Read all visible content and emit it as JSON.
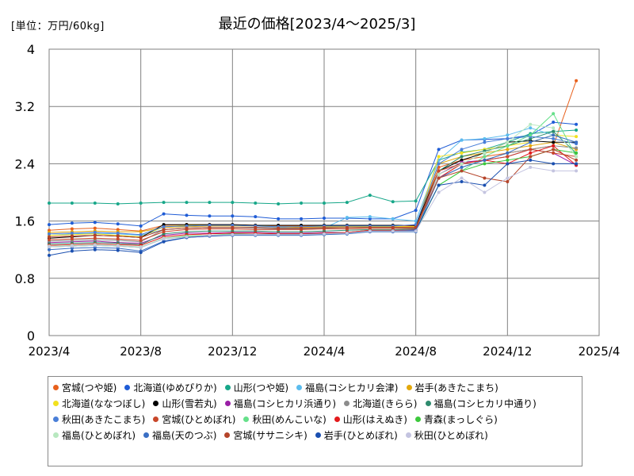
{
  "page": {
    "unit_label": "[単位：万円/60kg]",
    "title": "最近の価格[2023/4～2025/3]"
  },
  "chart_data": {
    "type": "line",
    "title": "最近の価格[2023/4～2025/3]",
    "ylabel": "[単位：万円/60kg]",
    "ylim": [
      0,
      4
    ],
    "yticks": [
      0,
      0.8,
      1.6,
      2.4,
      3.2,
      4
    ],
    "ytick_labels": [
      "0",
      "0.8",
      "1.6",
      "2.4",
      "3.2",
      "4"
    ],
    "xticks": [
      "2023/4",
      "2023/8",
      "2023/12",
      "2024/4",
      "2024/8",
      "2024/12",
      "2025/4"
    ],
    "x": [
      "2023/4",
      "2023/5",
      "2023/6",
      "2023/7",
      "2023/8",
      "2023/9",
      "2023/10",
      "2023/11",
      "2023/12",
      "2024/1",
      "2024/2",
      "2024/3",
      "2024/4",
      "2024/5",
      "2024/6",
      "2024/7",
      "2024/8",
      "2024/9",
      "2024/10",
      "2024/11",
      "2024/12",
      "2025/1",
      "2025/2",
      "2025/3"
    ],
    "grid": true,
    "legend_position": "bottom",
    "series": [
      {
        "name": "宮城(つや姫)",
        "color": "#e8601c",
        "values": [
          1.47,
          1.49,
          1.5,
          1.48,
          1.46,
          1.54,
          1.55,
          1.55,
          1.55,
          1.54,
          1.53,
          1.53,
          1.53,
          1.53,
          1.53,
          1.53,
          1.53,
          2.35,
          2.45,
          2.5,
          2.55,
          2.6,
          2.65,
          3.56
        ]
      },
      {
        "name": "北海道(ゆめぴりか)",
        "color": "#1f5cd6",
        "values": [
          1.55,
          1.57,
          1.58,
          1.56,
          1.53,
          1.7,
          1.68,
          1.67,
          1.67,
          1.66,
          1.63,
          1.63,
          1.64,
          1.64,
          1.63,
          1.63,
          1.75,
          2.6,
          2.73,
          2.74,
          2.75,
          2.8,
          2.98,
          2.95
        ]
      },
      {
        "name": "山形(つや姫)",
        "color": "#17a789",
        "values": [
          1.85,
          1.85,
          1.85,
          1.84,
          1.85,
          1.86,
          1.86,
          1.86,
          1.86,
          1.85,
          1.84,
          1.85,
          1.85,
          1.86,
          1.96,
          1.87,
          1.88,
          2.45,
          2.56,
          2.6,
          2.7,
          2.82,
          2.85,
          2.87
        ]
      },
      {
        "name": "福島(コシヒカリ会津)",
        "color": "#5bbcee",
        "values": [
          1.4,
          1.42,
          1.43,
          1.42,
          1.4,
          1.48,
          1.5,
          1.51,
          1.51,
          1.51,
          1.51,
          1.5,
          1.5,
          1.65,
          1.66,
          1.63,
          1.6,
          2.45,
          2.73,
          2.75,
          2.8,
          2.9,
          2.8,
          2.7
        ]
      },
      {
        "name": "岩手(あきたこまち)",
        "color": "#e3a80c",
        "values": [
          1.44,
          1.45,
          1.46,
          1.45,
          1.45,
          1.51,
          1.52,
          1.53,
          1.53,
          1.53,
          1.52,
          1.51,
          1.51,
          1.52,
          1.53,
          1.52,
          1.52,
          2.4,
          2.5,
          2.55,
          2.6,
          2.65,
          2.7,
          2.6
        ]
      },
      {
        "name": "北海道(ななつぼし)",
        "color": "#f2e11e",
        "values": [
          1.4,
          1.41,
          1.42,
          1.4,
          1.38,
          1.52,
          1.54,
          1.54,
          1.54,
          1.53,
          1.52,
          1.52,
          1.52,
          1.52,
          1.52,
          1.52,
          1.52,
          2.5,
          2.55,
          2.6,
          2.65,
          2.7,
          2.8,
          2.78
        ]
      },
      {
        "name": "山形(雪若丸)",
        "color": "#000000",
        "values": [
          1.36,
          1.38,
          1.4,
          1.39,
          1.37,
          1.55,
          1.55,
          1.55,
          1.55,
          1.54,
          1.54,
          1.54,
          1.54,
          1.54,
          1.54,
          1.54,
          1.54,
          2.3,
          2.45,
          2.55,
          2.7,
          2.72,
          2.7,
          2.7
        ]
      },
      {
        "name": "福島(コシヒカリ浜通り)",
        "color": "#9a1fa6",
        "values": [
          1.3,
          1.31,
          1.32,
          1.3,
          1.29,
          1.4,
          1.43,
          1.43,
          1.44,
          1.44,
          1.43,
          1.43,
          1.44,
          1.44,
          1.47,
          1.47,
          1.48,
          2.25,
          2.42,
          2.45,
          2.5,
          2.6,
          2.55,
          2.38
        ]
      },
      {
        "name": "北海道(きらら)",
        "color": "#8c8c8c",
        "values": [
          1.32,
          1.33,
          1.34,
          1.33,
          1.31,
          1.48,
          1.5,
          1.51,
          1.51,
          1.5,
          1.49,
          1.49,
          1.5,
          1.51,
          1.51,
          1.51,
          1.51,
          2.2,
          2.35,
          2.45,
          2.55,
          2.6,
          2.65,
          2.62
        ]
      },
      {
        "name": "福島(コシヒカリ中通り)",
        "color": "#2e8b6e",
        "values": [
          1.28,
          1.29,
          1.3,
          1.29,
          1.27,
          1.42,
          1.45,
          1.46,
          1.46,
          1.46,
          1.45,
          1.45,
          1.46,
          1.47,
          1.48,
          1.48,
          1.49,
          2.3,
          2.5,
          2.58,
          2.65,
          2.75,
          2.85,
          2.55
        ]
      },
      {
        "name": "秋田(あきたこまち)",
        "color": "#4a7fd8",
        "values": [
          1.42,
          1.43,
          1.44,
          1.43,
          1.41,
          1.52,
          1.53,
          1.54,
          1.54,
          1.53,
          1.52,
          1.52,
          1.53,
          1.53,
          1.53,
          1.53,
          1.55,
          2.4,
          2.6,
          2.7,
          2.75,
          2.78,
          2.75,
          2.68
        ]
      },
      {
        "name": "宮城(ひとめぼれ)",
        "color": "#c8472a",
        "values": [
          1.34,
          1.35,
          1.36,
          1.35,
          1.33,
          1.45,
          1.48,
          1.49,
          1.49,
          1.48,
          1.48,
          1.48,
          1.49,
          1.49,
          1.5,
          1.5,
          1.5,
          2.3,
          2.4,
          2.45,
          2.5,
          2.6,
          2.55,
          2.5
        ]
      },
      {
        "name": "秋田(めんこいな)",
        "color": "#66e08a",
        "values": [
          1.24,
          1.25,
          1.26,
          1.25,
          1.24,
          1.35,
          1.38,
          1.4,
          1.42,
          1.43,
          1.42,
          1.42,
          1.43,
          1.44,
          1.47,
          1.47,
          1.47,
          2.1,
          2.3,
          2.5,
          2.65,
          2.8,
          3.1,
          2.5
        ]
      },
      {
        "name": "山形(はえぬき)",
        "color": "#e31a1c",
        "values": [
          1.26,
          1.27,
          1.28,
          1.27,
          1.26,
          1.38,
          1.41,
          1.42,
          1.43,
          1.43,
          1.42,
          1.42,
          1.43,
          1.44,
          1.47,
          1.47,
          1.47,
          2.2,
          2.4,
          2.45,
          2.4,
          2.55,
          2.65,
          2.38
        ]
      },
      {
        "name": "青森(まっしぐら)",
        "color": "#3cc83c",
        "values": [
          1.24,
          1.25,
          1.26,
          1.25,
          1.23,
          1.36,
          1.39,
          1.4,
          1.41,
          1.41,
          1.41,
          1.41,
          1.42,
          1.43,
          1.46,
          1.46,
          1.46,
          2.1,
          2.3,
          2.4,
          2.45,
          2.5,
          2.6,
          2.55
        ]
      },
      {
        "name": "福島(ひとめぼれ)",
        "color": "#b8e8c0",
        "values": [
          1.25,
          1.26,
          1.27,
          1.26,
          1.24,
          1.36,
          1.38,
          1.39,
          1.4,
          1.4,
          1.4,
          1.4,
          1.41,
          1.42,
          1.45,
          1.45,
          1.45,
          2.25,
          2.4,
          2.55,
          2.7,
          2.95,
          2.9,
          2.5
        ]
      },
      {
        "name": "福島(天のつぶ)",
        "color": "#3a6fc4",
        "values": [
          1.2,
          1.22,
          1.23,
          1.22,
          1.18,
          1.32,
          1.37,
          1.39,
          1.4,
          1.4,
          1.4,
          1.4,
          1.41,
          1.42,
          1.45,
          1.45,
          1.45,
          2.2,
          2.35,
          2.45,
          2.55,
          2.7,
          2.8,
          2.7
        ]
      },
      {
        "name": "宮城(ササニシキ)",
        "color": "#b5442a",
        "values": [
          1.38,
          1.39,
          1.4,
          1.39,
          1.37,
          1.48,
          1.5,
          1.51,
          1.51,
          1.51,
          1.5,
          1.5,
          1.51,
          1.51,
          1.51,
          1.51,
          1.51,
          2.2,
          2.3,
          2.2,
          2.15,
          2.5,
          2.6,
          2.45
        ]
      },
      {
        "name": "岩手(ひとめぼれ)",
        "color": "#1a4fb0",
        "values": [
          1.12,
          1.18,
          1.2,
          1.19,
          1.16,
          1.31,
          1.37,
          1.39,
          1.41,
          1.41,
          1.41,
          1.41,
          1.42,
          1.43,
          1.46,
          1.46,
          1.47,
          2.1,
          2.15,
          2.1,
          2.4,
          2.45,
          2.4,
          2.4
        ]
      },
      {
        "name": "秋田(ひとめぼれ)",
        "color": "#c4c4e0",
        "values": [
          1.24,
          1.25,
          1.26,
          1.25,
          1.23,
          1.35,
          1.38,
          1.4,
          1.41,
          1.41,
          1.41,
          1.41,
          1.42,
          1.43,
          1.46,
          1.46,
          1.46,
          2.0,
          2.2,
          2.0,
          2.2,
          2.35,
          2.3,
          2.3
        ]
      }
    ]
  }
}
